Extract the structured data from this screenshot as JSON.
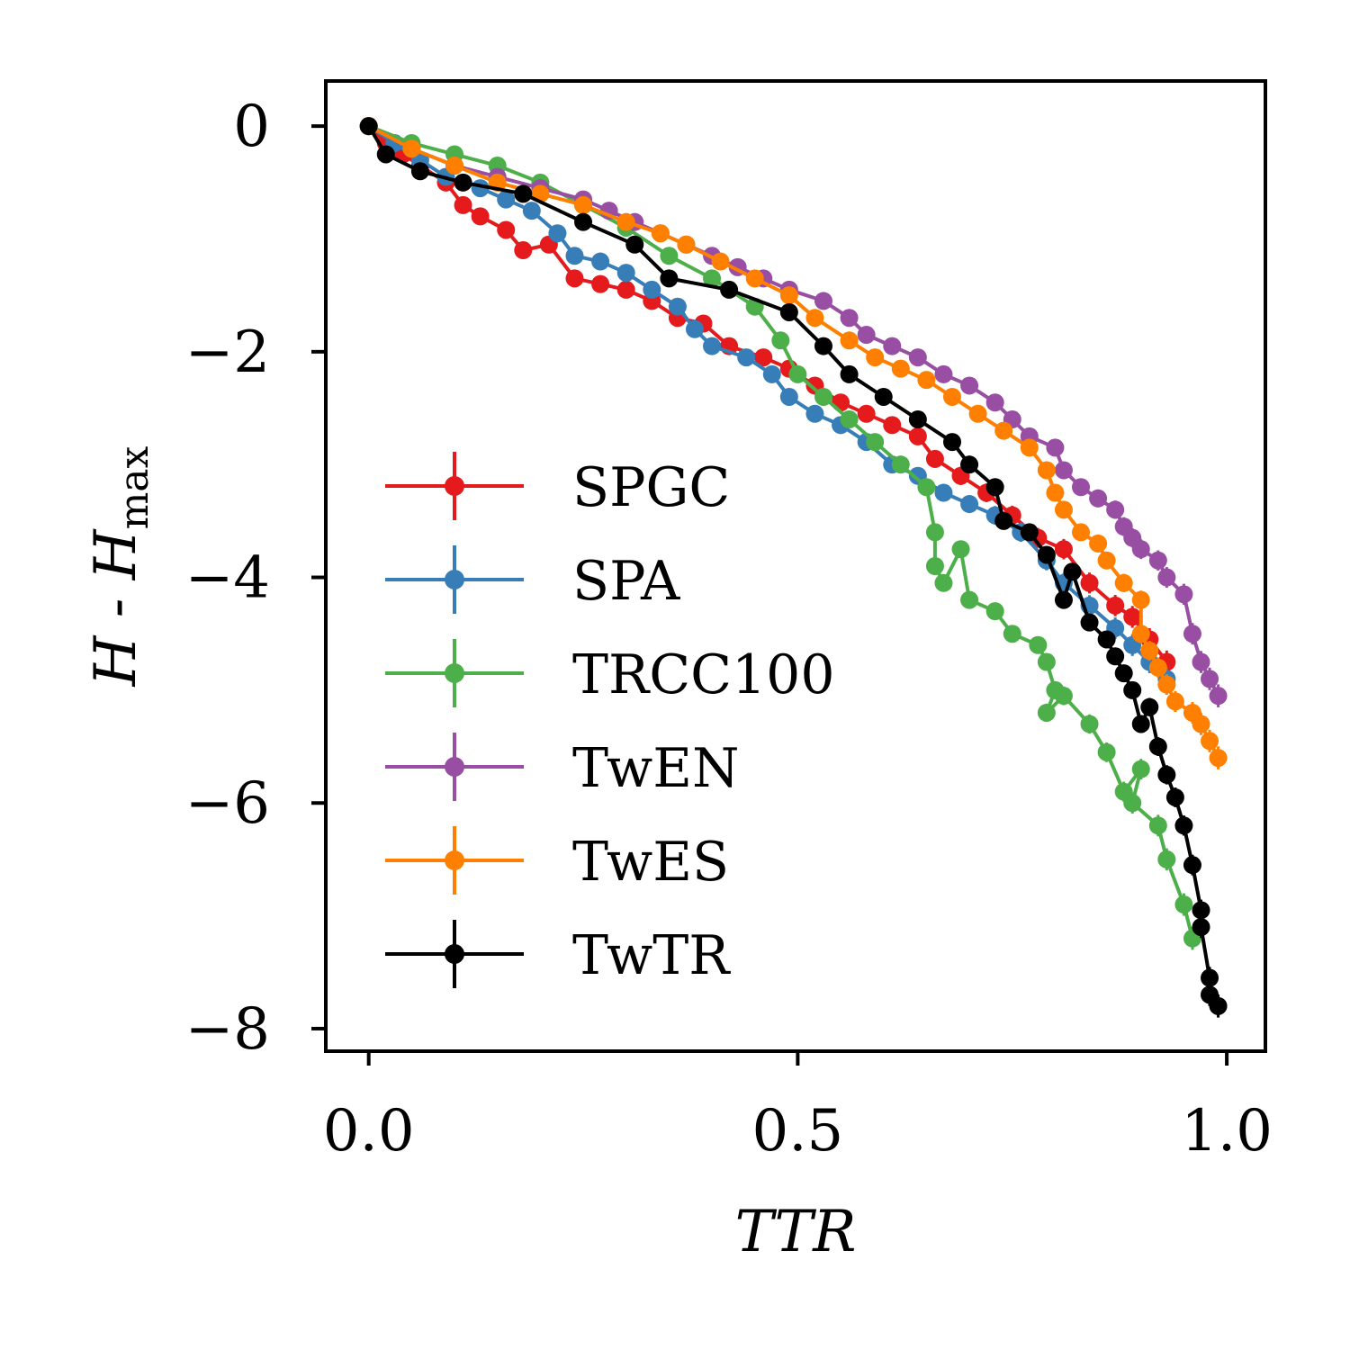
{
  "chart_data": {
    "type": "line",
    "title": "",
    "xlabel": "TTR",
    "ylabel": {
      "main": "H - H",
      "subscript": "max"
    },
    "xlim": [
      -0.05,
      1.045
    ],
    "ylim": [
      -8.2,
      0.4
    ],
    "xticks": [
      0.0,
      0.5,
      1.0
    ],
    "xtick_labels": [
      "0.0",
      "0.5",
      "1.0"
    ],
    "yticks": [
      0,
      -2,
      -4,
      -6,
      -8
    ],
    "ytick_labels": [
      "0",
      "−2",
      "−4",
      "−6",
      "−8"
    ],
    "grid": false,
    "legend_position": "lower-left",
    "series": [
      {
        "name": "SPGC",
        "color": "#e41a1c",
        "x": [
          0.0,
          0.02,
          0.04,
          0.06,
          0.09,
          0.11,
          0.13,
          0.16,
          0.18,
          0.21,
          0.24,
          0.27,
          0.3,
          0.33,
          0.36,
          0.39,
          0.42,
          0.46,
          0.49,
          0.52,
          0.55,
          0.58,
          0.61,
          0.64,
          0.66,
          0.69,
          0.72,
          0.75,
          0.78,
          0.81,
          0.84,
          0.87,
          0.89,
          0.91,
          0.93
        ],
        "y": [
          0.0,
          -0.15,
          -0.25,
          -0.35,
          -0.5,
          -0.7,
          -0.8,
          -0.92,
          -1.1,
          -1.05,
          -1.35,
          -1.4,
          -1.45,
          -1.55,
          -1.7,
          -1.75,
          -1.95,
          -2.05,
          -2.15,
          -2.3,
          -2.45,
          -2.55,
          -2.65,
          -2.75,
          -2.95,
          -3.1,
          -3.25,
          -3.45,
          -3.65,
          -3.75,
          -4.05,
          -4.25,
          -4.35,
          -4.55,
          -4.75
        ]
      },
      {
        "name": "SPA",
        "color": "#377eb8",
        "x": [
          0.0,
          0.03,
          0.06,
          0.09,
          0.13,
          0.16,
          0.19,
          0.22,
          0.24,
          0.27,
          0.3,
          0.33,
          0.36,
          0.38,
          0.4,
          0.44,
          0.47,
          0.49,
          0.52,
          0.55,
          0.58,
          0.61,
          0.64,
          0.67,
          0.7,
          0.73,
          0.76,
          0.79,
          0.81,
          0.84,
          0.87,
          0.89,
          0.91,
          0.93
        ],
        "y": [
          0.0,
          -0.15,
          -0.3,
          -0.45,
          -0.55,
          -0.65,
          -0.75,
          -0.95,
          -1.15,
          -1.2,
          -1.3,
          -1.45,
          -1.6,
          -1.8,
          -1.95,
          -2.05,
          -2.2,
          -2.4,
          -2.55,
          -2.65,
          -2.8,
          -3.0,
          -3.1,
          -3.25,
          -3.35,
          -3.45,
          -3.6,
          -3.85,
          -4.05,
          -4.25,
          -4.45,
          -4.6,
          -4.75,
          -4.9
        ]
      },
      {
        "name": "TRCC100",
        "color": "#4daf4a",
        "x": [
          0.0,
          0.05,
          0.1,
          0.15,
          0.2,
          0.25,
          0.3,
          0.35,
          0.4,
          0.45,
          0.48,
          0.5,
          0.53,
          0.56,
          0.59,
          0.62,
          0.65,
          0.66,
          0.66,
          0.67,
          0.69,
          0.7,
          0.73,
          0.75,
          0.78,
          0.79,
          0.8,
          0.79,
          0.81,
          0.84,
          0.86,
          0.88,
          0.9,
          0.89,
          0.92,
          0.93,
          0.95,
          0.96
        ],
        "y": [
          0.0,
          -0.15,
          -0.25,
          -0.35,
          -0.5,
          -0.7,
          -0.9,
          -1.15,
          -1.35,
          -1.6,
          -1.9,
          -2.2,
          -2.4,
          -2.6,
          -2.8,
          -3.0,
          -3.2,
          -3.6,
          -3.9,
          -4.05,
          -3.75,
          -4.2,
          -4.3,
          -4.5,
          -4.6,
          -4.75,
          -5.0,
          -5.2,
          -5.05,
          -5.3,
          -5.55,
          -5.9,
          -5.7,
          -6.0,
          -6.2,
          -6.5,
          -6.9,
          -7.2
        ]
      },
      {
        "name": "TwEN",
        "color": "#984ea3",
        "x": [
          0.0,
          0.05,
          0.1,
          0.15,
          0.2,
          0.25,
          0.28,
          0.31,
          0.34,
          0.37,
          0.4,
          0.43,
          0.46,
          0.49,
          0.53,
          0.56,
          0.58,
          0.61,
          0.64,
          0.67,
          0.7,
          0.73,
          0.75,
          0.77,
          0.8,
          0.81,
          0.83,
          0.85,
          0.87,
          0.88,
          0.89,
          0.9,
          0.92,
          0.93,
          0.95,
          0.96,
          0.97,
          0.98,
          0.99
        ],
        "y": [
          0.0,
          -0.2,
          -0.35,
          -0.45,
          -0.55,
          -0.65,
          -0.75,
          -0.85,
          -0.95,
          -1.05,
          -1.15,
          -1.25,
          -1.35,
          -1.45,
          -1.55,
          -1.7,
          -1.85,
          -1.95,
          -2.05,
          -2.2,
          -2.3,
          -2.45,
          -2.6,
          -2.75,
          -2.85,
          -3.05,
          -3.2,
          -3.3,
          -3.4,
          -3.55,
          -3.65,
          -3.75,
          -3.85,
          -4.0,
          -4.15,
          -4.5,
          -4.75,
          -4.9,
          -5.05
        ]
      },
      {
        "name": "TwES",
        "color": "#ff7f00",
        "x": [
          0.0,
          0.05,
          0.1,
          0.15,
          0.2,
          0.25,
          0.3,
          0.34,
          0.37,
          0.41,
          0.45,
          0.49,
          0.52,
          0.56,
          0.59,
          0.62,
          0.65,
          0.68,
          0.71,
          0.74,
          0.77,
          0.79,
          0.8,
          0.81,
          0.83,
          0.85,
          0.86,
          0.88,
          0.9,
          0.9,
          0.91,
          0.92,
          0.93,
          0.94,
          0.96,
          0.97,
          0.98,
          0.99
        ],
        "y": [
          0.0,
          -0.2,
          -0.35,
          -0.5,
          -0.6,
          -0.7,
          -0.85,
          -0.95,
          -1.05,
          -1.2,
          -1.35,
          -1.5,
          -1.7,
          -1.9,
          -2.05,
          -2.15,
          -2.25,
          -2.4,
          -2.55,
          -2.7,
          -2.85,
          -3.05,
          -3.25,
          -3.4,
          -3.6,
          -3.7,
          -3.85,
          -4.05,
          -4.2,
          -4.5,
          -4.65,
          -4.8,
          -4.95,
          -5.1,
          -5.2,
          -5.3,
          -5.45,
          -5.6
        ]
      },
      {
        "name": "TwTR",
        "color": "#000000",
        "x": [
          0.0,
          0.02,
          0.06,
          0.11,
          0.18,
          0.25,
          0.31,
          0.35,
          0.42,
          0.49,
          0.53,
          0.56,
          0.6,
          0.64,
          0.68,
          0.7,
          0.73,
          0.74,
          0.77,
          0.79,
          0.81,
          0.82,
          0.84,
          0.86,
          0.87,
          0.88,
          0.89,
          0.9,
          0.91,
          0.92,
          0.93,
          0.94,
          0.95,
          0.96,
          0.97,
          0.97,
          0.98,
          0.98,
          0.99
        ],
        "y": [
          0.0,
          -0.25,
          -0.4,
          -0.5,
          -0.6,
          -0.85,
          -1.05,
          -1.35,
          -1.45,
          -1.65,
          -1.95,
          -2.2,
          -2.4,
          -2.6,
          -2.8,
          -3.0,
          -3.2,
          -3.5,
          -3.6,
          -3.8,
          -4.2,
          -3.95,
          -4.4,
          -4.55,
          -4.7,
          -4.85,
          -5.0,
          -5.3,
          -5.15,
          -5.5,
          -5.75,
          -5.95,
          -6.2,
          -6.55,
          -6.95,
          -7.1,
          -7.55,
          -7.7,
          -7.8
        ]
      }
    ]
  }
}
